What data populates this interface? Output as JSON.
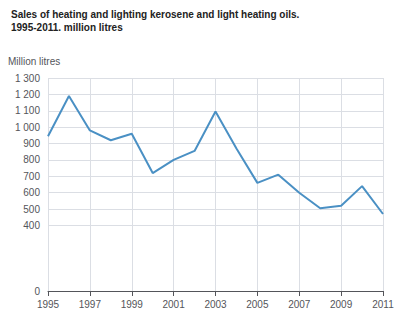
{
  "chart_data": {
    "type": "line",
    "title": "Sales of heating and lighting kerosene and light heating oils.",
    "subtitle": "1995-2011. million litres",
    "ylabel": "Million litres",
    "x": [
      1995,
      1996,
      1997,
      1998,
      1999,
      2000,
      2001,
      2002,
      2003,
      2004,
      2005,
      2006,
      2007,
      2008,
      2009,
      2010,
      2011
    ],
    "values": [
      945,
      1190,
      980,
      920,
      960,
      720,
      800,
      855,
      1095,
      870,
      660,
      710,
      600,
      505,
      520,
      640,
      470
    ],
    "color": "#4a90c4",
    "xlim": [
      1995,
      2011
    ],
    "xticks": [
      1995,
      1997,
      1999,
      2001,
      2003,
      2005,
      2007,
      2009,
      2011
    ],
    "ylim": [
      0,
      1300
    ],
    "yticks": [
      0,
      400,
      500,
      600,
      700,
      800,
      900,
      {
        "value": 1000,
        "label": "1 000"
      },
      {
        "value": 1100,
        "label": "1 100"
      },
      {
        "value": 1200,
        "label": "1 200"
      },
      {
        "value": 1300,
        "label": "1 300"
      }
    ],
    "grid": true
  }
}
